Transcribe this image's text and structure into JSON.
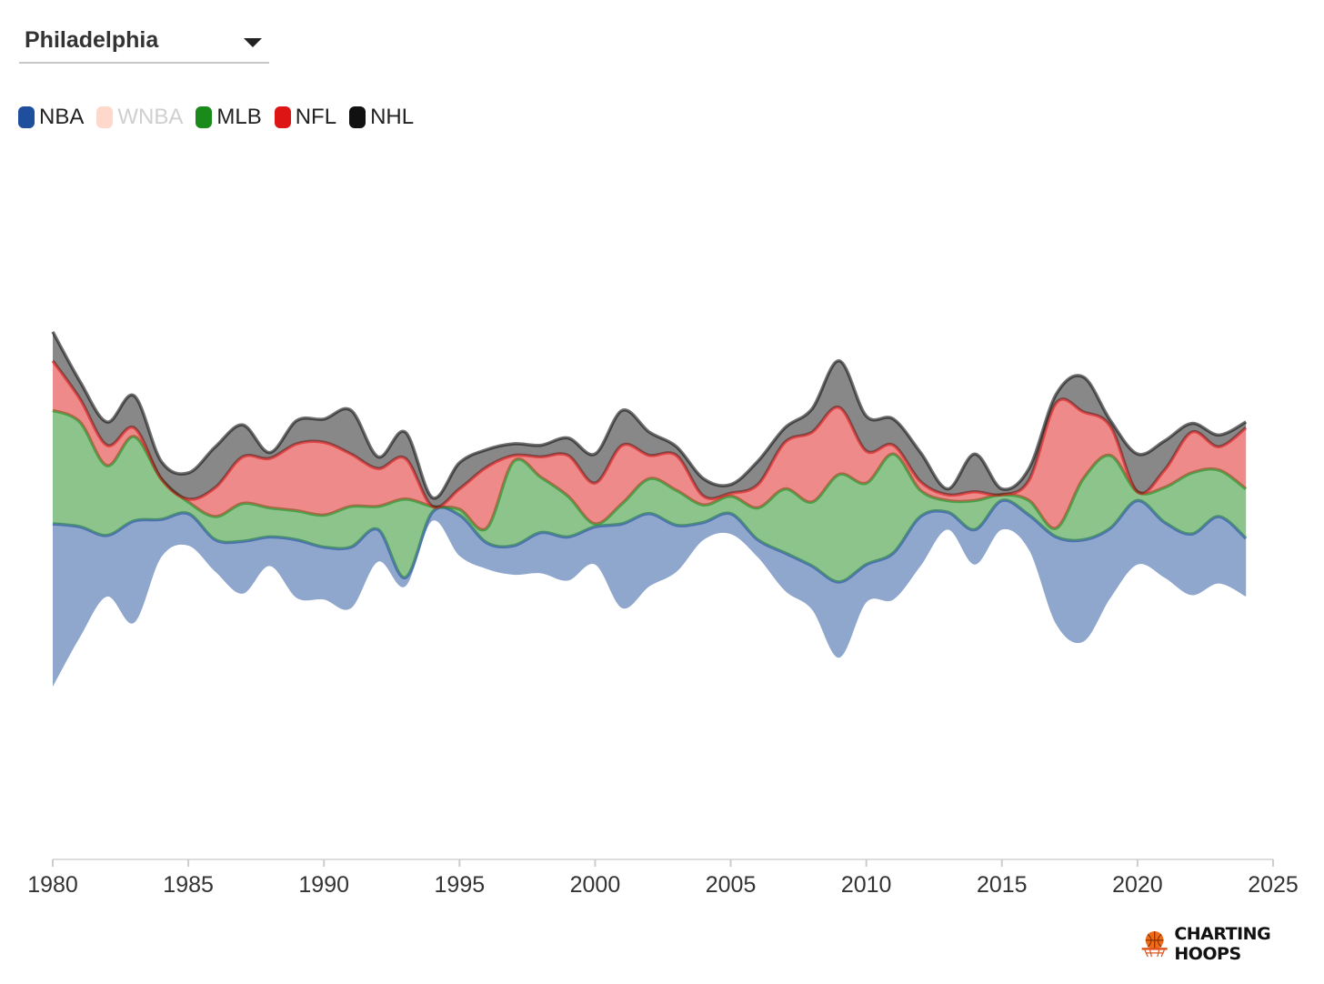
{
  "filter": {
    "selected_city": "Philadelphia"
  },
  "legend": [
    {
      "label": "NBA",
      "color": "#1f4e9c",
      "active": true
    },
    {
      "label": "WNBA",
      "color": "#ffd8cc",
      "active": false
    },
    {
      "label": "MLB",
      "color": "#1a8a1a",
      "active": true
    },
    {
      "label": "NFL",
      "color": "#dd1515",
      "active": true
    },
    {
      "label": "NHL",
      "color": "#111111",
      "active": true
    }
  ],
  "branding": {
    "text": "CHARTING HOOPS",
    "icon": "basketball-hoop-icon"
  },
  "chart_data": {
    "type": "area",
    "layout": "streamgraph",
    "xlim": [
      1980,
      2025
    ],
    "xticks": [
      1980,
      1985,
      1990,
      1995,
      2000,
      2005,
      2010,
      2015,
      2020,
      2025
    ],
    "x": [
      1980,
      1981,
      1982,
      1983,
      1984,
      1985,
      1986,
      1987,
      1988,
      1989,
      1990,
      1991,
      1992,
      1993,
      1994,
      1995,
      1996,
      1997,
      1998,
      1999,
      2000,
      2001,
      2002,
      2003,
      2004,
      2005,
      2006,
      2007,
      2008,
      2009,
      2010,
      2011,
      2012,
      2013,
      2014,
      2015,
      2016,
      2017,
      2018,
      2019,
      2020,
      2021,
      2022,
      2023,
      2024
    ],
    "series": [
      {
        "name": "NBA",
        "color": "#1f4e9c",
        "values": [
          5.6,
          3.8,
          2.1,
          3.5,
          1.3,
          1.1,
          1.1,
          1.8,
          1.0,
          2.0,
          1.8,
          2.1,
          1.1,
          0.3,
          0.3,
          1.4,
          0.9,
          1.0,
          1.4,
          1.5,
          1.3,
          2.9,
          2.5,
          1.6,
          0.6,
          0.7,
          0.6,
          1.3,
          1.5,
          2.6,
          1.3,
          1.6,
          1.7,
          0.6,
          1.2,
          1.0,
          1.2,
          3.0,
          3.5,
          2.4,
          2.2,
          1.9,
          2.1,
          2.3,
          2.0
        ]
      },
      {
        "name": "MLB",
        "color": "#1a8a1a",
        "values": [
          3.9,
          3.6,
          2.4,
          2.9,
          1.4,
          0.4,
          0.8,
          1.3,
          1.0,
          1.0,
          1.1,
          1.4,
          0.8,
          2.7,
          0.2,
          0.2,
          0.5,
          2.9,
          1.9,
          1.4,
          0.1,
          0.7,
          1.2,
          1.2,
          0.6,
          0.6,
          1.1,
          2.2,
          2.2,
          3.7,
          2.8,
          3.4,
          0.9,
          0.4,
          1.0,
          0.2,
          0.5,
          0.3,
          2.1,
          2.5,
          0.3,
          1.2,
          2.1,
          1.6,
          1.7
        ]
      },
      {
        "name": "NFL",
        "color": "#dd1515",
        "values": [
          1.7,
          0.8,
          0.7,
          0.3,
          0.0,
          0.1,
          1.0,
          1.6,
          1.7,
          2.3,
          2.5,
          1.8,
          1.3,
          1.4,
          0.0,
          0.7,
          2.1,
          0.2,
          0.7,
          1.4,
          1.4,
          2.0,
          0.8,
          1.2,
          0.3,
          0.1,
          0.8,
          1.6,
          2.4,
          2.3,
          1.1,
          0.3,
          0.3,
          0.2,
          0.3,
          0.0,
          0.7,
          4.3,
          2.3,
          1.0,
          0.0,
          0.6,
          1.4,
          0.8,
          2.1
        ]
      },
      {
        "name": "NHL",
        "color": "#111111",
        "values": [
          1.0,
          0.6,
          0.8,
          1.1,
          0.6,
          0.9,
          1.4,
          1.1,
          0.2,
          0.8,
          0.8,
          1.5,
          0.4,
          0.9,
          0.3,
          0.9,
          0.6,
          0.4,
          0.4,
          0.6,
          1.0,
          1.2,
          0.8,
          0.3,
          0.6,
          0.3,
          0.8,
          0.5,
          0.8,
          1.6,
          1.2,
          0.9,
          1.0,
          0.2,
          1.3,
          0.2,
          0.4,
          0.3,
          1.2,
          0.2,
          1.3,
          1.0,
          0.3,
          0.4,
          0.2
        ]
      }
    ]
  }
}
